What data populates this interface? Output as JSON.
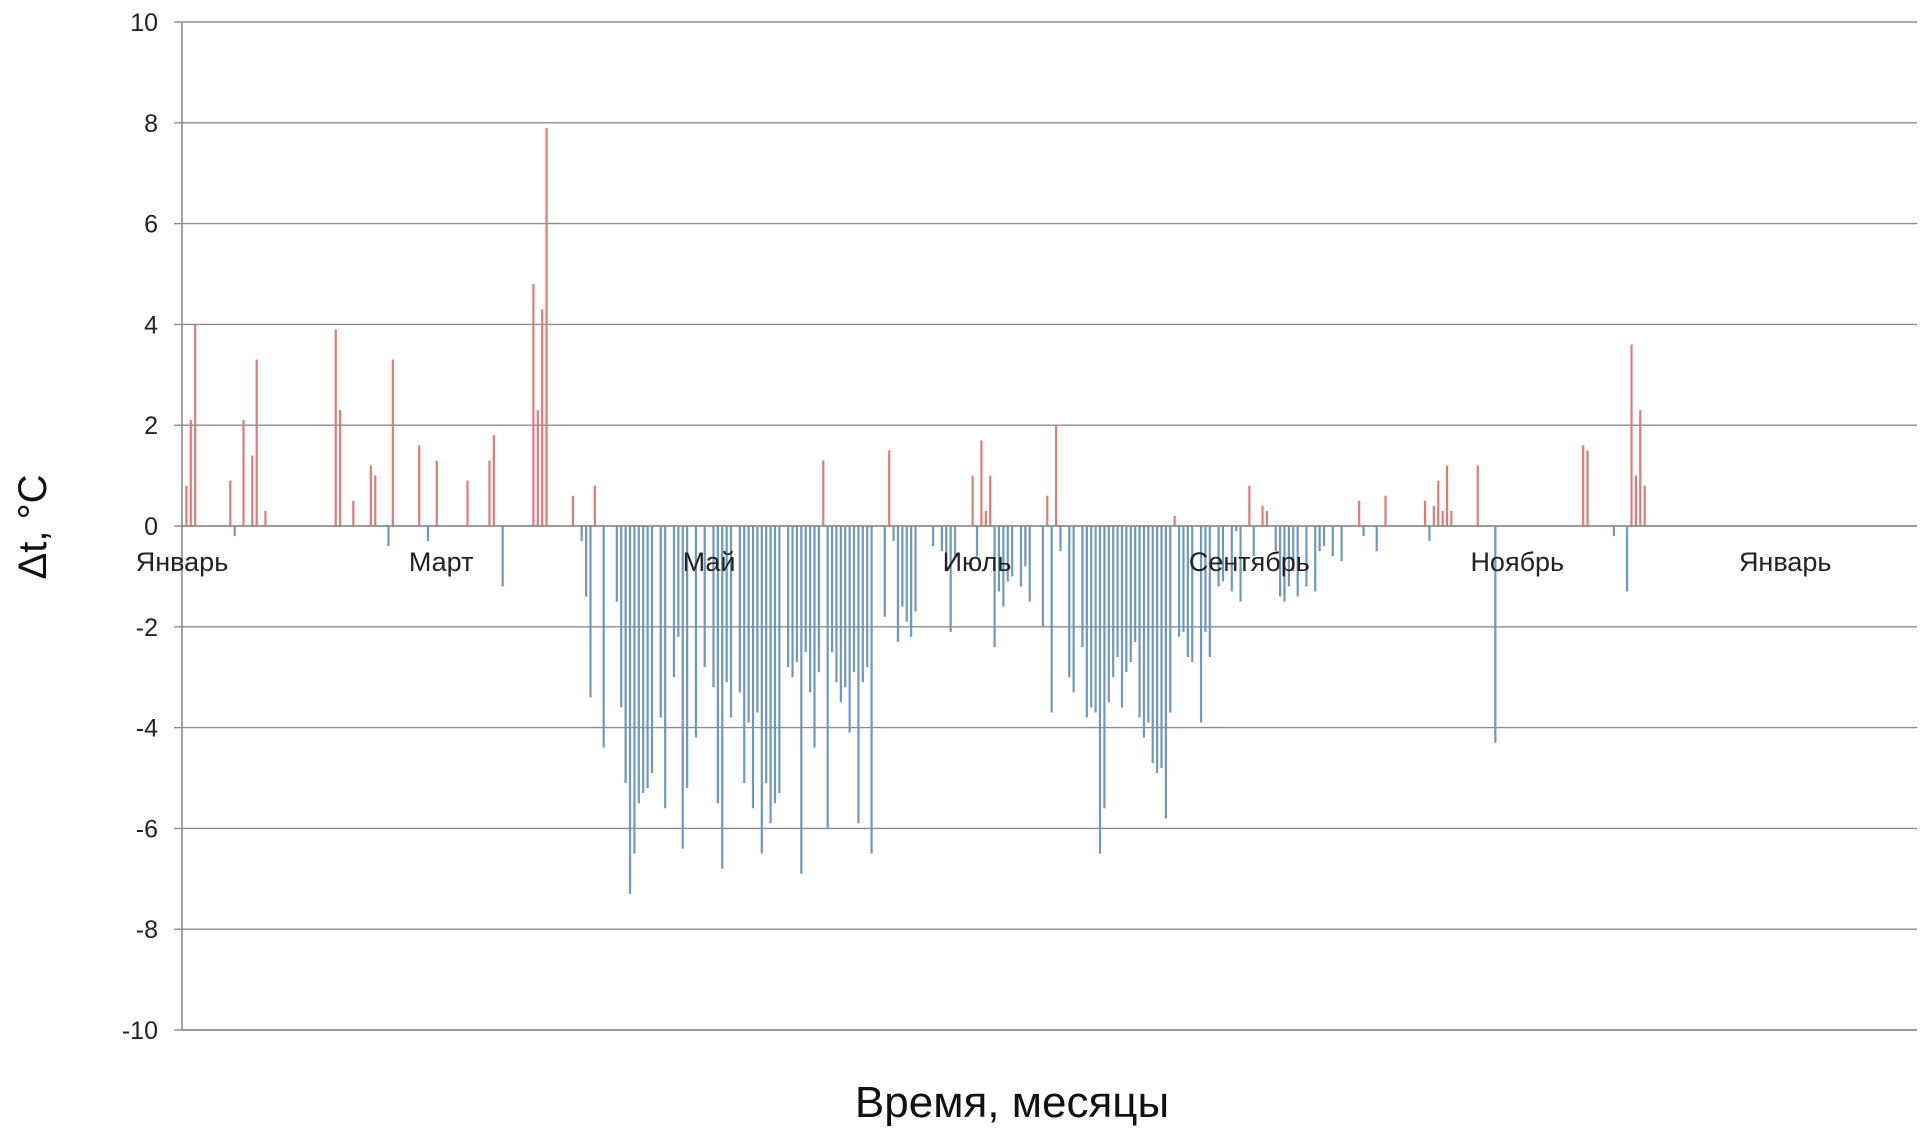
{
  "chart_data": {
    "type": "bar",
    "xlabel": "Время, месяцы",
    "ylabel": "Δt, °C",
    "ylim": [
      -10,
      10
    ],
    "yticks": [
      "10",
      "8",
      "6",
      "4",
      "2",
      "0",
      "-2",
      "-4",
      "-6",
      "-8",
      "-10"
    ],
    "ytick_values": [
      10,
      8,
      6,
      4,
      2,
      0,
      -2,
      -4,
      -6,
      -8,
      -10
    ],
    "grid": true,
    "x_axis": {
      "type": "day-index",
      "min": 0,
      "max": 395
    },
    "month_labels": [
      {
        "label": "Январь",
        "x": 0
      },
      {
        "label": "Март",
        "x": 59
      },
      {
        "label": "Май",
        "x": 120
      },
      {
        "label": "Июль",
        "x": 181
      },
      {
        "label": "Сентябрь",
        "x": 243
      },
      {
        "label": "Ноябрь",
        "x": 304
      },
      {
        "label": "Январь",
        "x": 365
      }
    ],
    "colors": {
      "positive": "#e07a7a",
      "negative": "#6f97c0",
      "grid": "#8c8c8c",
      "axis": "#8c8c8c"
    },
    "series": [
      {
        "name": "",
        "points": [
          [
            1,
            0.8
          ],
          [
            2,
            2.1
          ],
          [
            3,
            4.0
          ],
          [
            11,
            0.9
          ],
          [
            12,
            -0.2
          ],
          [
            14,
            2.1
          ],
          [
            16,
            1.4
          ],
          [
            17,
            3.3
          ],
          [
            19,
            0.3
          ],
          [
            35,
            3.9
          ],
          [
            36,
            2.3
          ],
          [
            39,
            0.5
          ],
          [
            43,
            1.2
          ],
          [
            44,
            1.0
          ],
          [
            47,
            -0.4
          ],
          [
            48,
            3.3
          ],
          [
            54,
            1.6
          ],
          [
            56,
            -0.3
          ],
          [
            58,
            1.3
          ],
          [
            65,
            0.9
          ],
          [
            70,
            1.3
          ],
          [
            71,
            1.8
          ],
          [
            73,
            -1.2
          ],
          [
            80,
            4.8
          ],
          [
            81,
            2.3
          ],
          [
            82,
            4.3
          ],
          [
            83,
            7.9
          ],
          [
            89,
            0.6
          ],
          [
            91,
            -0.3
          ],
          [
            92,
            -1.4
          ],
          [
            93,
            -3.4
          ],
          [
            94,
            0.8
          ],
          [
            96,
            -4.4
          ],
          [
            99,
            -1.5
          ],
          [
            100,
            -3.6
          ],
          [
            101,
            -5.1
          ],
          [
            102,
            -7.3
          ],
          [
            103,
            -6.5
          ],
          [
            104,
            -5.5
          ],
          [
            105,
            -5.3
          ],
          [
            106,
            -5.2
          ],
          [
            107,
            -4.9
          ],
          [
            109,
            -3.8
          ],
          [
            110,
            -5.6
          ],
          [
            112,
            -3.0
          ],
          [
            113,
            -2.2
          ],
          [
            114,
            -6.4
          ],
          [
            115,
            -5.2
          ],
          [
            117,
            -4.2
          ],
          [
            119,
            -2.8
          ],
          [
            121,
            -3.2
          ],
          [
            122,
            -5.5
          ],
          [
            123,
            -6.8
          ],
          [
            124,
            -3.1
          ],
          [
            125,
            -3.8
          ],
          [
            127,
            -3.3
          ],
          [
            128,
            -5.1
          ],
          [
            129,
            -3.9
          ],
          [
            130,
            -5.6
          ],
          [
            131,
            -3.7
          ],
          [
            132,
            -6.5
          ],
          [
            133,
            -5.1
          ],
          [
            134,
            -5.9
          ],
          [
            135,
            -5.5
          ],
          [
            136,
            -5.3
          ],
          [
            138,
            -2.8
          ],
          [
            139,
            -3.0
          ],
          [
            140,
            -2.7
          ],
          [
            141,
            -6.9
          ],
          [
            142,
            -2.5
          ],
          [
            143,
            -3.3
          ],
          [
            144,
            -4.4
          ],
          [
            145,
            -2.9
          ],
          [
            146,
            1.3
          ],
          [
            147,
            -6.0
          ],
          [
            148,
            -2.5
          ],
          [
            149,
            -3.1
          ],
          [
            150,
            -3.5
          ],
          [
            151,
            -3.2
          ],
          [
            152,
            -4.1
          ],
          [
            153,
            -2.9
          ],
          [
            154,
            -5.9
          ],
          [
            155,
            -3.1
          ],
          [
            156,
            -2.8
          ],
          [
            157,
            -6.5
          ],
          [
            160,
            -1.8
          ],
          [
            161,
            1.5
          ],
          [
            162,
            -0.3
          ],
          [
            163,
            -2.3
          ],
          [
            164,
            -1.6
          ],
          [
            165,
            -1.9
          ],
          [
            166,
            -2.2
          ],
          [
            167,
            -1.7
          ],
          [
            171,
            -0.4
          ],
          [
            173,
            -0.5
          ],
          [
            174,
            -0.9
          ],
          [
            175,
            -2.1
          ],
          [
            176,
            -0.6
          ],
          [
            180,
            1.0
          ],
          [
            181,
            -0.6
          ],
          [
            182,
            1.7
          ],
          [
            183,
            0.3
          ],
          [
            184,
            1.0
          ],
          [
            185,
            -2.4
          ],
          [
            186,
            -1.3
          ],
          [
            187,
            -1.6
          ],
          [
            188,
            -1.1
          ],
          [
            189,
            -1.0
          ],
          [
            191,
            -1.2
          ],
          [
            192,
            -0.8
          ],
          [
            193,
            -1.5
          ],
          [
            196,
            -2.0
          ],
          [
            197,
            0.6
          ],
          [
            198,
            -3.7
          ],
          [
            199,
            2.0
          ],
          [
            200,
            -0.5
          ],
          [
            202,
            -3.0
          ],
          [
            203,
            -3.3
          ],
          [
            205,
            -2.4
          ],
          [
            206,
            -3.8
          ],
          [
            207,
            -3.6
          ],
          [
            208,
            -3.7
          ],
          [
            209,
            -6.5
          ],
          [
            210,
            -5.6
          ],
          [
            211,
            -3.5
          ],
          [
            212,
            -3.0
          ],
          [
            213,
            -2.6
          ],
          [
            214,
            -3.6
          ],
          [
            215,
            -2.9
          ],
          [
            216,
            -2.7
          ],
          [
            217,
            -2.3
          ],
          [
            218,
            -3.8
          ],
          [
            219,
            -4.2
          ],
          [
            220,
            -3.9
          ],
          [
            221,
            -4.7
          ],
          [
            222,
            -4.9
          ],
          [
            223,
            -4.8
          ],
          [
            224,
            -5.8
          ],
          [
            225,
            -3.7
          ],
          [
            226,
            0.2
          ],
          [
            227,
            -2.2
          ],
          [
            228,
            -2.1
          ],
          [
            229,
            -2.6
          ],
          [
            230,
            -2.7
          ],
          [
            232,
            -3.9
          ],
          [
            233,
            -2.1
          ],
          [
            234,
            -2.6
          ],
          [
            236,
            -1.2
          ],
          [
            237,
            -1.1
          ],
          [
            239,
            -1.3
          ],
          [
            240,
            -0.1
          ],
          [
            241,
            -1.5
          ],
          [
            243,
            0.8
          ],
          [
            244,
            -0.6
          ],
          [
            246,
            0.4
          ],
          [
            247,
            0.3
          ],
          [
            249,
            -0.5
          ],
          [
            250,
            -1.4
          ],
          [
            251,
            -1.5
          ],
          [
            252,
            -1.2
          ],
          [
            253,
            -0.9
          ],
          [
            254,
            -1.4
          ],
          [
            256,
            -1.2
          ],
          [
            258,
            -1.3
          ],
          [
            259,
            -0.5
          ],
          [
            260,
            -0.4
          ],
          [
            262,
            -0.6
          ],
          [
            264,
            -0.7
          ],
          [
            268,
            0.5
          ],
          [
            269,
            -0.2
          ],
          [
            272,
            -0.5
          ],
          [
            274,
            0.6
          ],
          [
            283,
            0.5
          ],
          [
            284,
            -0.3
          ],
          [
            285,
            0.4
          ],
          [
            286,
            0.9
          ],
          [
            287,
            0.3
          ],
          [
            288,
            1.2
          ],
          [
            289,
            0.3
          ],
          [
            295,
            1.2
          ],
          [
            299,
            -4.3
          ],
          [
            319,
            1.6
          ],
          [
            320,
            1.5
          ],
          [
            326,
            -0.2
          ],
          [
            329,
            -1.3
          ],
          [
            330,
            3.6
          ],
          [
            331,
            1.0
          ],
          [
            332,
            2.3
          ],
          [
            333,
            0.8
          ]
        ]
      }
    ]
  }
}
